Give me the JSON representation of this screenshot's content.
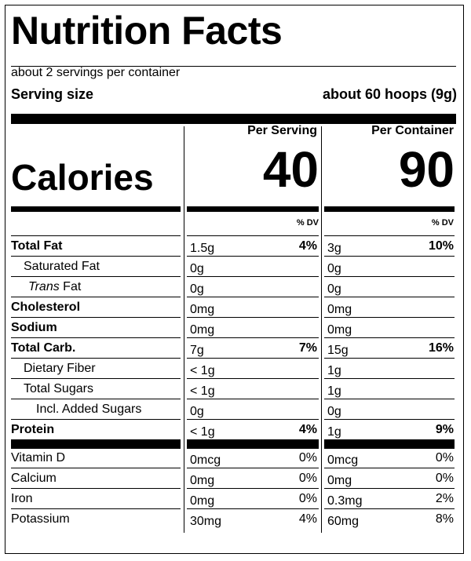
{
  "title": "Nutrition Facts",
  "servings_per_container": "about 2 servings per container",
  "serving_size_label": "Serving size",
  "serving_size_value": "about 60 hoops (9g)",
  "col_per_serving": "Per Serving",
  "col_per_container": "Per Container",
  "calories_label": "Calories",
  "calories_per_serving": "40",
  "calories_per_container": "90",
  "dv_label": "% DV",
  "nutrients": [
    {
      "name": "Total Fat",
      "bold": true,
      "indent": 0,
      "s_amt": "1.5g",
      "s_dv": "4%",
      "c_amt": "3g",
      "c_dv": "10%"
    },
    {
      "name": "Saturated Fat",
      "bold": false,
      "indent": 1,
      "s_amt": "0g",
      "s_dv": "",
      "c_amt": "0g",
      "c_dv": ""
    },
    {
      "name_italic": "Trans",
      "name": " Fat",
      "bold": false,
      "indent": 2,
      "s_amt": "0g",
      "s_dv": "",
      "c_amt": "0g",
      "c_dv": ""
    },
    {
      "name": "Cholesterol",
      "bold": true,
      "indent": 0,
      "s_amt": "0mg",
      "s_dv": "",
      "c_amt": "0mg",
      "c_dv": ""
    },
    {
      "name": "Sodium",
      "bold": true,
      "indent": 0,
      "s_amt": "0mg",
      "s_dv": "",
      "c_amt": "0mg",
      "c_dv": ""
    },
    {
      "name": "Total Carb.",
      "bold": true,
      "indent": 0,
      "s_amt": "7g",
      "s_dv": "7%",
      "c_amt": "15g",
      "c_dv": "16%"
    },
    {
      "name": "Dietary Fiber",
      "bold": false,
      "indent": 1,
      "s_amt": "< 1g",
      "s_dv": "",
      "c_amt": "1g",
      "c_dv": ""
    },
    {
      "name": "Total Sugars",
      "bold": false,
      "indent": 1,
      "s_amt": "< 1g",
      "s_dv": "",
      "c_amt": "1g",
      "c_dv": ""
    },
    {
      "name": "Incl. Added Sugars",
      "bold": false,
      "indent": 3,
      "s_amt": "0g",
      "s_dv": "",
      "c_amt": "0g",
      "c_dv": ""
    },
    {
      "name": "Protein",
      "bold": true,
      "indent": 0,
      "s_amt": "< 1g",
      "s_dv": "4%",
      "c_amt": "1g",
      "c_dv": "9%"
    }
  ],
  "vitamins": [
    {
      "name": "Vitamin D",
      "s_amt": "0mcg",
      "s_dv": "0%",
      "c_amt": "0mcg",
      "c_dv": "0%"
    },
    {
      "name": "Calcium",
      "s_amt": "0mg",
      "s_dv": "0%",
      "c_amt": "0mg",
      "c_dv": "0%"
    },
    {
      "name": "Iron",
      "s_amt": "0mg",
      "s_dv": "0%",
      "c_amt": "0.3mg",
      "c_dv": "2%"
    },
    {
      "name": "Potassium",
      "s_amt": "30mg",
      "s_dv": "4%",
      "c_amt": "60mg",
      "c_dv": "8%"
    }
  ]
}
